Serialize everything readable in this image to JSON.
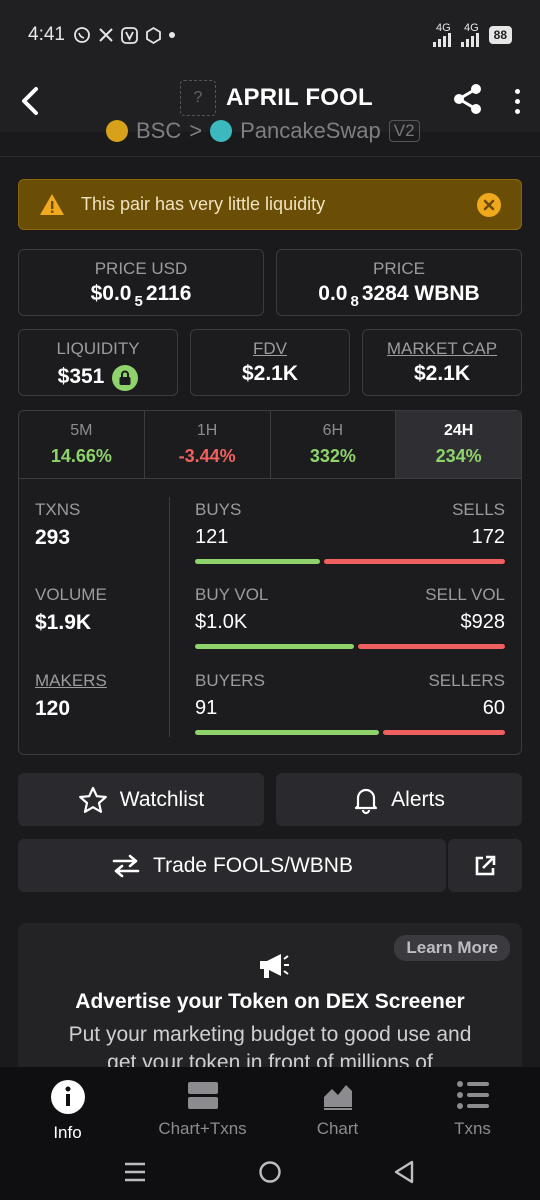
{
  "status": {
    "time": "4:41",
    "net1": "4G",
    "net2": "4G",
    "battery": "88"
  },
  "header": {
    "placeholder_glyph": "?",
    "title": "APRIL FOOL"
  },
  "chain": {
    "chain_name": "BSC",
    "arrow": ">",
    "dex_name": "PancakeSwap",
    "version": "V2"
  },
  "warning": {
    "text": "This pair has very little liquidity"
  },
  "price_usd": {
    "label": "PRICE USD",
    "prefix": "$0.0",
    "zeros": "5",
    "digits": "2116"
  },
  "price_native": {
    "label": "PRICE",
    "prefix": "0.0",
    "zeros": "8",
    "digits": "3284 WBNB"
  },
  "liquidity": {
    "label": "LIQUIDITY",
    "value": "$351"
  },
  "fdv": {
    "label": "FDV",
    "value": "$2.1K"
  },
  "market_cap": {
    "label": "MARKET CAP",
    "value": "$2.1K"
  },
  "tabs": [
    {
      "label": "5M",
      "value": "14.66%",
      "trend": "pos"
    },
    {
      "label": "1H",
      "value": "-3.44%",
      "trend": "neg"
    },
    {
      "label": "6H",
      "value": "332%",
      "trend": "pos"
    },
    {
      "label": "24H",
      "value": "234%",
      "trend": "pos",
      "active": true
    }
  ],
  "stats": {
    "txns": {
      "label": "TXNS",
      "value": "293"
    },
    "volume": {
      "label": "VOLUME",
      "value": "$1.9K"
    },
    "makers": {
      "label": "MAKERS",
      "value": "120"
    },
    "buys": {
      "label": "BUYS",
      "value": "121",
      "share": 0.41
    },
    "sells": {
      "label": "SELLS",
      "value": "172"
    },
    "buy_vol": {
      "label": "BUY VOL",
      "value": "$1.0K",
      "share": 0.52
    },
    "sell_vol": {
      "label": "SELL VOL",
      "value": "$928"
    },
    "buyers": {
      "label": "BUYERS",
      "value": "91",
      "share": 0.6
    },
    "sellers": {
      "label": "SELLERS",
      "value": "60"
    }
  },
  "buttons": {
    "watchlist": "Watchlist",
    "alerts": "Alerts",
    "trade": "Trade FOOLS/WBNB"
  },
  "promo": {
    "learn_more": "Learn More",
    "title": "Advertise your Token on DEX Screener",
    "text": "Put your marketing budget to good use and get your token in front of millions of"
  },
  "nav": [
    {
      "label": "Info",
      "icon": "info-icon",
      "active": true
    },
    {
      "label": "Chart+Txns",
      "icon": "chart-txns-icon"
    },
    {
      "label": "Chart",
      "icon": "area-chart-icon"
    },
    {
      "label": "Txns",
      "icon": "list-icon"
    }
  ],
  "colors": {
    "positive": "#8ed36b",
    "negative": "#f0605e",
    "warning_bg": "#6b4e06",
    "background": "#1a1a1d"
  }
}
